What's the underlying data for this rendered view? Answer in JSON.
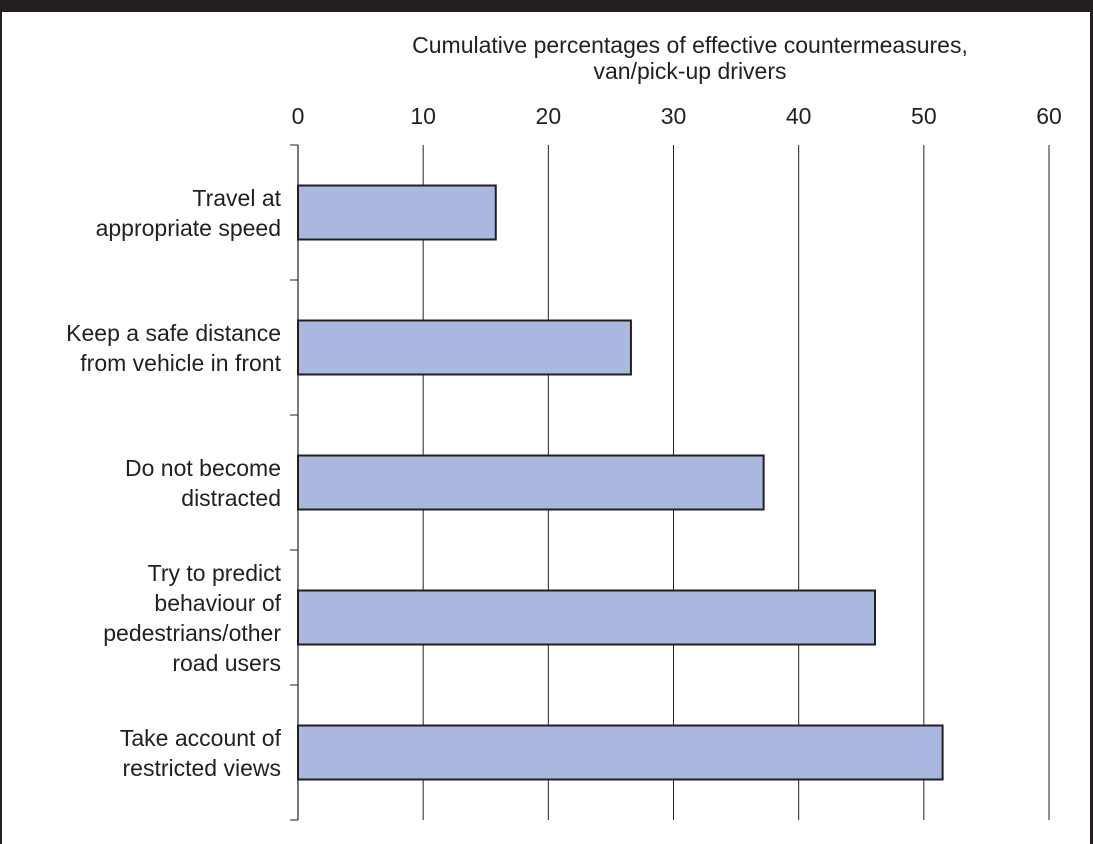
{
  "chart_data": {
    "type": "bar",
    "orientation": "horizontal",
    "title": [
      "Cumulative percentages of effective countermeasures,",
      "van/pick-up drivers"
    ],
    "categories": [
      [
        "Travel at",
        "appropriate speed"
      ],
      [
        "Keep a safe distance",
        "from vehicle in front"
      ],
      [
        "Do not become",
        "distracted"
      ],
      [
        "Try to predict",
        "behaviour of",
        "pedestrians/other",
        "road users"
      ],
      [
        "Take account of",
        "restricted views"
      ]
    ],
    "values": [
      15.8,
      26.6,
      37.2,
      46.1,
      51.5
    ],
    "xlim": [
      0,
      60
    ],
    "xticks": [
      0,
      10,
      20,
      30,
      40,
      50,
      60
    ],
    "xaxis_position": "top",
    "grid": true,
    "colors": {
      "bar_fill": "#aab8df",
      "bar_stroke": "#231f20",
      "grid": "#231f20",
      "frame": "#231f20"
    }
  }
}
